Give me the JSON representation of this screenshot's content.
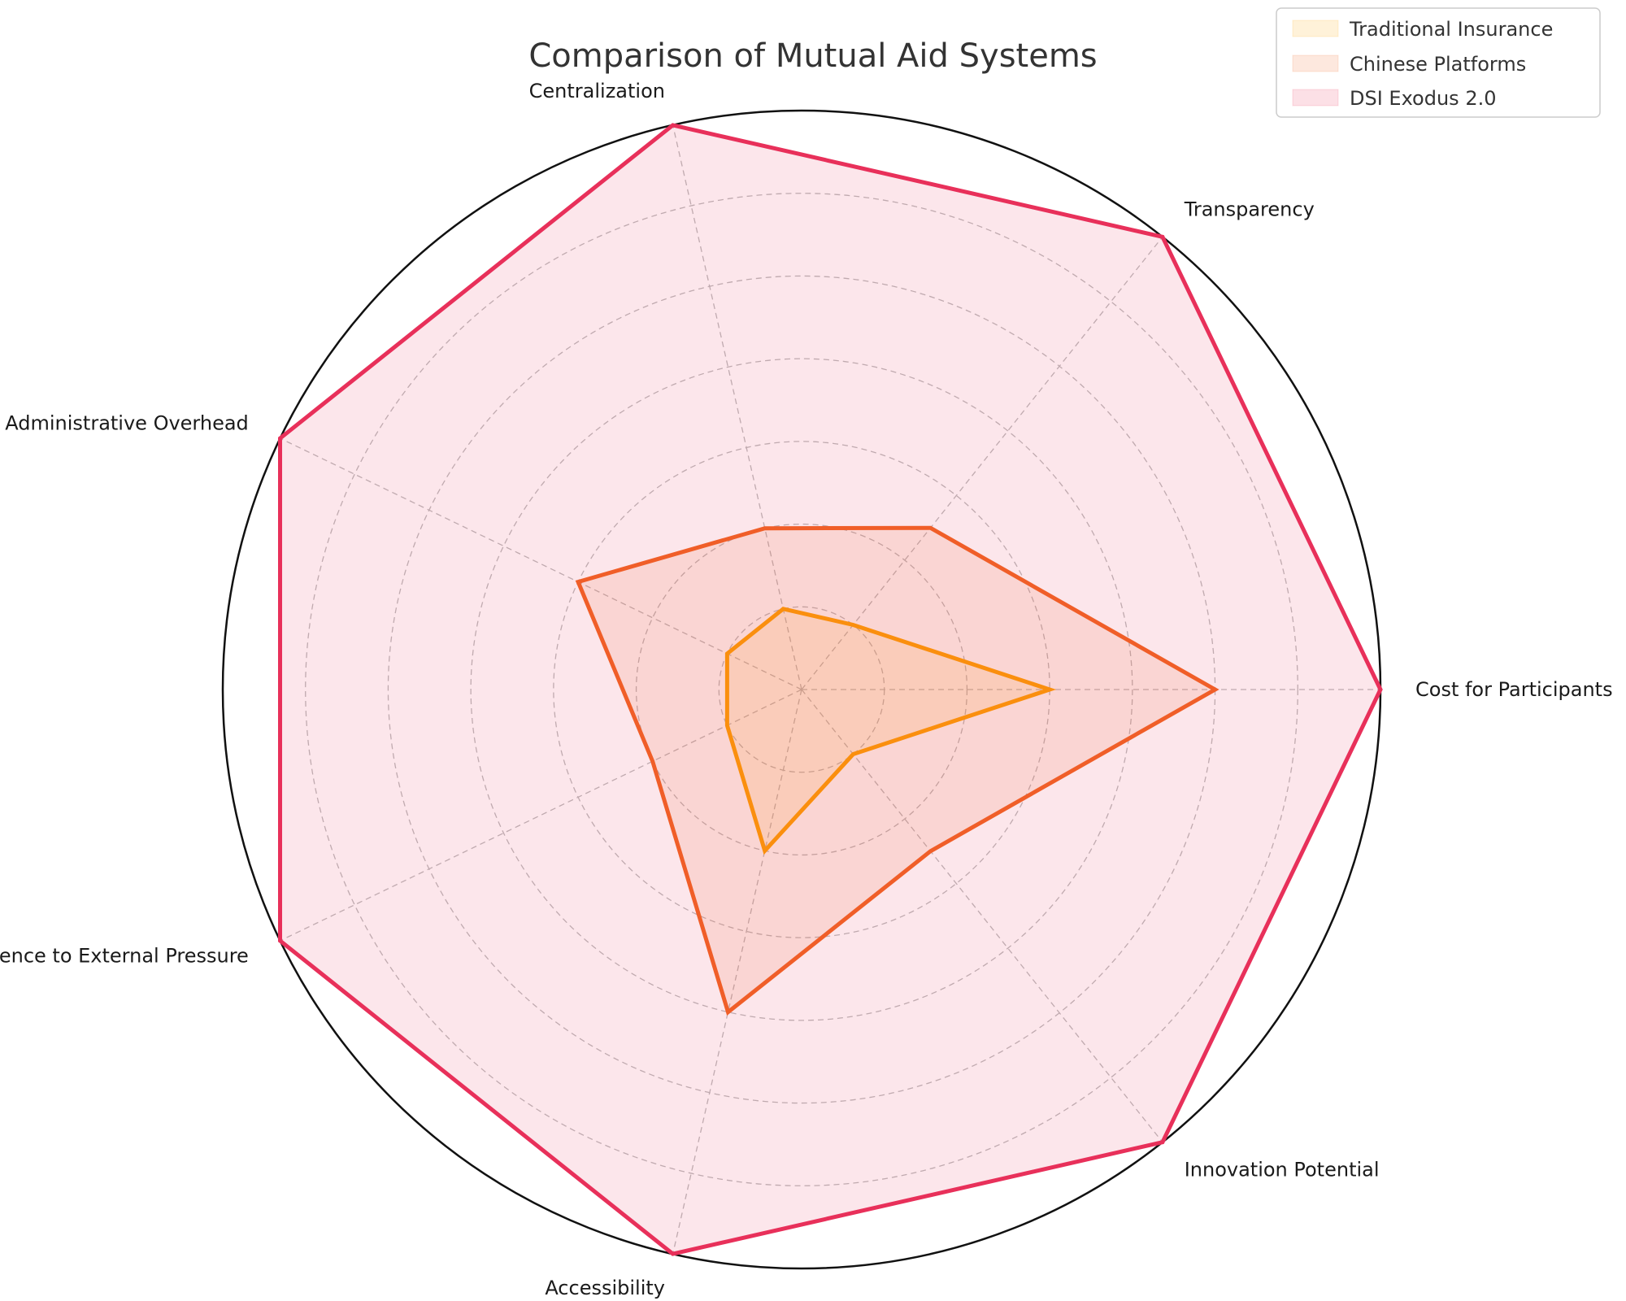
{
  "chart_data": {
    "type": "radar",
    "title": "Comparison of Mutual Aid Systems",
    "axes": [
      "Cost for Participants",
      "Transparency",
      "Centralization",
      "Administrative Overhead",
      "Resilience to External Pressure",
      "Accessibility",
      "Innovation Potential"
    ],
    "rlim": [
      0,
      7
    ],
    "rings": [
      1,
      2,
      3,
      4,
      5,
      6,
      7
    ],
    "grid": true,
    "legend_position": "top-right",
    "series": [
      {
        "name": "Traditional Insurance",
        "color": "#FFA500",
        "values": [
          3.0,
          1.0,
          1.0,
          1.0,
          1.0,
          2.0,
          1.0
        ]
      },
      {
        "name": "Chinese Platforms",
        "color": "#F26522",
        "values": [
          5.0,
          2.5,
          2.0,
          3.0,
          2.0,
          4.0,
          2.5
        ]
      },
      {
        "name": "DSI Exodus 2.0",
        "color": "#E8305A",
        "values": [
          7.0,
          7.0,
          7.0,
          7.0,
          7.0,
          7.0,
          7.0
        ]
      }
    ]
  }
}
